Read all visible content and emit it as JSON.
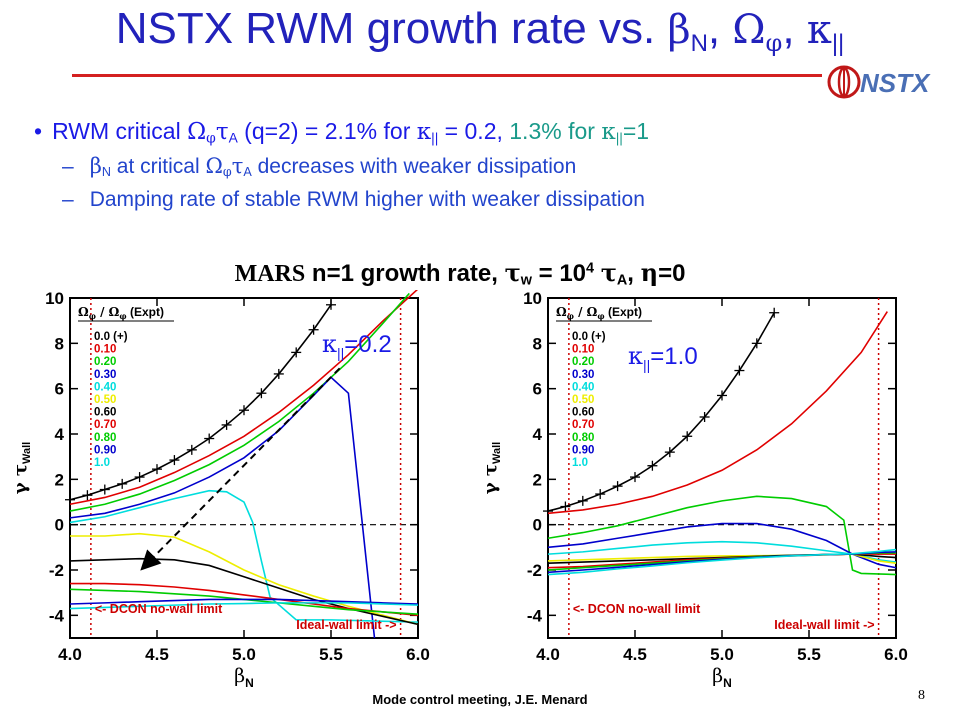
{
  "title": {
    "text": "NSTX RWM growth rate vs. ",
    "beta": "β",
    "beta_sub": "N",
    "omega": "Ω",
    "omega_sub": "φ",
    "kappa": "κ",
    "kappa_sub": "||",
    "comma": ", "
  },
  "logo": {
    "text": "NSTX",
    "color": "#4a6fb5"
  },
  "bullets": {
    "b1_pre": "RWM critical ",
    "b1_omega": "Ω",
    "b1_phi": "φ",
    "b1_tau": "τ",
    "b1_A": "A",
    "b1_mid": " (q=2) = 2.1% for ",
    "b1_k": "κ",
    "b1_ksub": "||",
    "b1_eq": " = 0.2, ",
    "b1_teal": "1.3% for ",
    "b1_k2": "κ",
    "b1_ksub2": "||",
    "b1_end": "=1",
    "b2": {
      "dash": "–",
      "beta": "β",
      "beta_sub": "N",
      "text1": " at critical ",
      "omega": "Ω",
      "phi": "φ",
      "tau": "τ",
      "A": "A",
      "text2": " decreases with weaker dissipation"
    },
    "b3": {
      "dash": "–",
      "text": "Damping rate of stable RWM higher with weaker dissipation"
    }
  },
  "heading": {
    "mars": "MARS",
    "rest1": " n=1 growth rate, ",
    "tau": "τ",
    "w": "w",
    "rest2": " = 10",
    "exp": "4",
    "tau2": "τ",
    "A": "A",
    "comma": ", ",
    "eta": "η",
    "rest3": "=0"
  },
  "legend": {
    "header_pre": "Ω",
    "header_sub": "φ",
    "header_mid": " / Ω",
    "header_sub2": "φ",
    "header_post": " (Expt)"
  },
  "ylabel": {
    "gamma": "γ ",
    "tau": "τ",
    "sub": "Wall"
  },
  "xlabel": {
    "beta": "β",
    "sub": "N"
  },
  "dcon_label": "<- DCON no-wall limit",
  "ideal_label": "Ideal-wall limit ->",
  "footer": "Mode control meeting, J.E. Menard",
  "page_number": "8",
  "chart_data": [
    {
      "type": "line",
      "annotation": {
        "kappa": "κ",
        "sub": "||",
        "text": "=0.2"
      },
      "xlim": [
        4.0,
        6.0
      ],
      "ylim": [
        -5,
        10
      ],
      "xticks": [
        "4.0",
        "4.5",
        "5.0",
        "5.5",
        "6.0"
      ],
      "yticks": [
        "-4",
        "-2",
        "0",
        "2",
        "4",
        "6",
        "8",
        "10"
      ],
      "dcon_limit": 4.12,
      "ideal_limit": 5.9,
      "series": [
        {
          "name": "0.0 (+)",
          "color": "#000000",
          "marker": "+",
          "x": [
            4.0,
            4.1,
            4.2,
            4.3,
            4.4,
            4.5,
            4.6,
            4.7,
            4.8,
            4.9,
            5.0,
            5.1,
            5.2,
            5.3,
            5.4,
            5.5
          ],
          "y": [
            1.1,
            1.3,
            1.55,
            1.8,
            2.1,
            2.45,
            2.85,
            3.3,
            3.8,
            4.4,
            5.05,
            5.8,
            6.65,
            7.6,
            8.6,
            9.7
          ]
        },
        {
          "name": "0.10",
          "color": "#e00000",
          "x": [
            4.0,
            4.2,
            4.4,
            4.6,
            4.8,
            5.0,
            5.2,
            5.4,
            5.6,
            5.8,
            6.0
          ],
          "y": [
            0.9,
            1.2,
            1.65,
            2.3,
            3.05,
            3.9,
            4.95,
            6.15,
            7.5,
            9.0,
            10.4
          ]
        },
        {
          "name": "0.20",
          "color": "#00cc00",
          "x": [
            4.0,
            4.2,
            4.4,
            4.6,
            4.8,
            5.0,
            5.2,
            5.4,
            5.6,
            5.8,
            5.95
          ],
          "y": [
            0.6,
            0.9,
            1.35,
            1.95,
            2.65,
            3.5,
            4.55,
            5.8,
            7.2,
            8.9,
            10.2
          ]
        },
        {
          "name": "0.30",
          "color": "#0000cc",
          "x": [
            4.0,
            4.2,
            4.4,
            4.6,
            4.8,
            5.0,
            5.2,
            5.4,
            5.5,
            5.6,
            5.75
          ],
          "y": [
            0.3,
            0.5,
            0.9,
            1.4,
            2.1,
            2.95,
            4.15,
            5.7,
            6.5,
            5.8,
            -5.0
          ]
        },
        {
          "name": "0.40",
          "color": "#00dddd",
          "x": [
            4.0,
            4.2,
            4.4,
            4.6,
            4.8,
            4.9,
            5.0,
            5.05,
            5.1,
            5.15,
            5.3,
            5.5,
            6.0
          ],
          "y": [
            0.1,
            0.35,
            0.75,
            1.15,
            1.5,
            1.45,
            1.0,
            0.1,
            -1.6,
            -3.2,
            -4.2,
            -4.2,
            -4.3
          ]
        },
        {
          "name": "0.50",
          "color": "#eeee00",
          "x": [
            4.0,
            4.2,
            4.4,
            4.6,
            4.8,
            5.0,
            5.2,
            5.4,
            5.6,
            5.8,
            6.0
          ],
          "y": [
            -0.5,
            -0.5,
            -0.4,
            -0.55,
            -1.2,
            -2.0,
            -2.65,
            -3.15,
            -3.6,
            -4.0,
            -4.4
          ]
        },
        {
          "name": "0.60",
          "color": "#000000",
          "x": [
            4.0,
            4.2,
            4.4,
            4.6,
            4.8,
            5.0,
            5.2,
            5.4,
            5.6,
            5.8,
            6.0
          ],
          "y": [
            -1.6,
            -1.55,
            -1.5,
            -1.55,
            -1.8,
            -2.3,
            -2.8,
            -3.3,
            -3.7,
            -4.05,
            -4.4
          ]
        },
        {
          "name": "0.70",
          "color": "#e00000",
          "x": [
            4.0,
            4.2,
            4.4,
            4.6,
            4.8,
            5.0,
            5.2,
            5.4,
            5.6,
            5.8,
            6.0
          ],
          "y": [
            -2.6,
            -2.6,
            -2.65,
            -2.75,
            -2.9,
            -3.1,
            -3.3,
            -3.5,
            -3.7,
            -3.85,
            -4.0
          ]
        },
        {
          "name": "0.80",
          "color": "#00cc00",
          "x": [
            4.0,
            4.2,
            4.4,
            4.6,
            4.8,
            5.0,
            5.2,
            5.4,
            5.6,
            5.8,
            6.0
          ],
          "y": [
            -2.85,
            -2.9,
            -2.95,
            -3.05,
            -3.15,
            -3.3,
            -3.45,
            -3.6,
            -3.75,
            -3.85,
            -3.95
          ]
        },
        {
          "name": "0.90",
          "color": "#0000cc",
          "x": [
            4.0,
            4.2,
            4.4,
            4.6,
            4.8,
            5.0,
            5.2,
            5.4,
            5.6,
            5.8,
            6.0
          ],
          "y": [
            -3.5,
            -3.45,
            -3.4,
            -3.35,
            -3.3,
            -3.3,
            -3.3,
            -3.35,
            -3.4,
            -3.45,
            -3.5
          ]
        },
        {
          "name": "1.0",
          "color": "#00dddd",
          "x": [
            4.0,
            4.2,
            4.4,
            4.6,
            4.8,
            5.0,
            5.2,
            5.4,
            5.6,
            5.8,
            6.0
          ],
          "y": [
            -3.7,
            -3.65,
            -3.6,
            -3.55,
            -3.5,
            -3.48,
            -3.45,
            -3.45,
            -3.45,
            -3.5,
            -3.55
          ]
        }
      ]
    },
    {
      "type": "line",
      "annotation": {
        "kappa": "κ",
        "sub": "||",
        "text": "=1.0"
      },
      "xlim": [
        4.0,
        6.0
      ],
      "ylim": [
        -5,
        10
      ],
      "xticks": [
        "4.0",
        "4.5",
        "5.0",
        "5.5",
        "6.0"
      ],
      "yticks": [
        "-4",
        "-2",
        "0",
        "2",
        "4",
        "6",
        "8",
        "10"
      ],
      "dcon_limit": 4.12,
      "ideal_limit": 5.9,
      "series": [
        {
          "name": "0.0 (+)",
          "color": "#000000",
          "marker": "+",
          "x": [
            4.0,
            4.1,
            4.2,
            4.3,
            4.4,
            4.5,
            4.6,
            4.7,
            4.8,
            4.9,
            5.0,
            5.1,
            5.2,
            5.3
          ],
          "y": [
            0.6,
            0.8,
            1.05,
            1.35,
            1.7,
            2.1,
            2.6,
            3.2,
            3.9,
            4.75,
            5.7,
            6.8,
            8.0,
            9.35
          ]
        },
        {
          "name": "0.10",
          "color": "#e00000",
          "x": [
            4.0,
            4.2,
            4.4,
            4.6,
            4.8,
            5.0,
            5.2,
            5.4,
            5.6,
            5.8,
            5.95
          ],
          "y": [
            0.5,
            0.65,
            0.9,
            1.25,
            1.75,
            2.4,
            3.3,
            4.45,
            5.9,
            7.6,
            9.4
          ]
        },
        {
          "name": "0.20",
          "color": "#00cc00",
          "x": [
            4.0,
            4.2,
            4.4,
            4.6,
            4.8,
            5.0,
            5.2,
            5.4,
            5.6,
            5.7,
            5.75,
            5.8,
            6.0
          ],
          "y": [
            -0.6,
            -0.35,
            -0.05,
            0.35,
            0.75,
            1.05,
            1.25,
            1.15,
            0.8,
            0.2,
            -2.0,
            -2.15,
            -2.2
          ]
        },
        {
          "name": "0.30",
          "color": "#0000cc",
          "x": [
            4.0,
            4.2,
            4.4,
            4.6,
            4.8,
            5.0,
            5.2,
            5.4,
            5.6,
            5.75,
            5.9,
            6.0
          ],
          "y": [
            -1.0,
            -0.85,
            -0.6,
            -0.35,
            -0.1,
            0.05,
            0.05,
            -0.2,
            -0.7,
            -1.3,
            -1.75,
            -1.9
          ]
        },
        {
          "name": "0.40",
          "color": "#00dddd",
          "x": [
            4.0,
            4.2,
            4.4,
            4.6,
            4.8,
            5.0,
            5.2,
            5.4,
            5.6,
            5.75,
            5.9,
            6.0
          ],
          "y": [
            -1.3,
            -1.2,
            -1.05,
            -0.9,
            -0.8,
            -0.75,
            -0.8,
            -0.95,
            -1.15,
            -1.3,
            -1.55,
            -1.65
          ]
        },
        {
          "name": "0.50",
          "color": "#eeee00",
          "x": [
            4.0,
            4.2,
            4.4,
            4.6,
            4.8,
            5.0,
            5.2,
            5.4,
            5.6,
            5.75,
            5.9,
            6.0
          ],
          "y": [
            -1.6,
            -1.55,
            -1.5,
            -1.45,
            -1.4,
            -1.38,
            -1.37,
            -1.35,
            -1.33,
            -1.3,
            -1.6,
            -1.7
          ]
        },
        {
          "name": "0.60",
          "color": "#000000",
          "x": [
            4.0,
            4.2,
            4.4,
            4.6,
            4.8,
            5.0,
            5.2,
            5.4,
            5.6,
            5.75,
            5.9,
            6.0
          ],
          "y": [
            -1.7,
            -1.65,
            -1.6,
            -1.55,
            -1.5,
            -1.45,
            -1.4,
            -1.35,
            -1.32,
            -1.3,
            -1.4,
            -1.45
          ]
        },
        {
          "name": "0.70",
          "color": "#e00000",
          "x": [
            4.0,
            4.2,
            4.4,
            4.6,
            4.8,
            5.0,
            5.2,
            5.4,
            5.6,
            5.75,
            5.9,
            6.0
          ],
          "y": [
            -1.9,
            -1.85,
            -1.75,
            -1.65,
            -1.55,
            -1.48,
            -1.42,
            -1.38,
            -1.33,
            -1.3,
            -1.3,
            -1.3
          ]
        },
        {
          "name": "0.80",
          "color": "#00cc00",
          "x": [
            4.0,
            4.2,
            4.4,
            4.6,
            4.8,
            5.0,
            5.2,
            5.4,
            5.6,
            5.75,
            5.9,
            6.0
          ],
          "y": [
            -2.0,
            -1.9,
            -1.8,
            -1.7,
            -1.6,
            -1.5,
            -1.42,
            -1.36,
            -1.32,
            -1.3,
            -1.25,
            -1.25
          ]
        },
        {
          "name": "0.90",
          "color": "#0000cc",
          "x": [
            4.0,
            4.2,
            4.4,
            4.6,
            4.8,
            5.0,
            5.2,
            5.4,
            5.6,
            5.75,
            5.9,
            6.0
          ],
          "y": [
            -2.1,
            -2.0,
            -1.88,
            -1.76,
            -1.64,
            -1.53,
            -1.44,
            -1.37,
            -1.32,
            -1.3,
            -1.22,
            -1.2
          ]
        },
        {
          "name": "1.0",
          "color": "#00dddd",
          "x": [
            4.0,
            4.2,
            4.4,
            4.6,
            4.8,
            5.0,
            5.2,
            5.4,
            5.6,
            5.75,
            5.9,
            6.0
          ],
          "y": [
            -2.2,
            -2.1,
            -1.95,
            -1.82,
            -1.68,
            -1.56,
            -1.46,
            -1.38,
            -1.32,
            -1.28,
            -1.18,
            -1.1
          ]
        }
      ]
    }
  ]
}
